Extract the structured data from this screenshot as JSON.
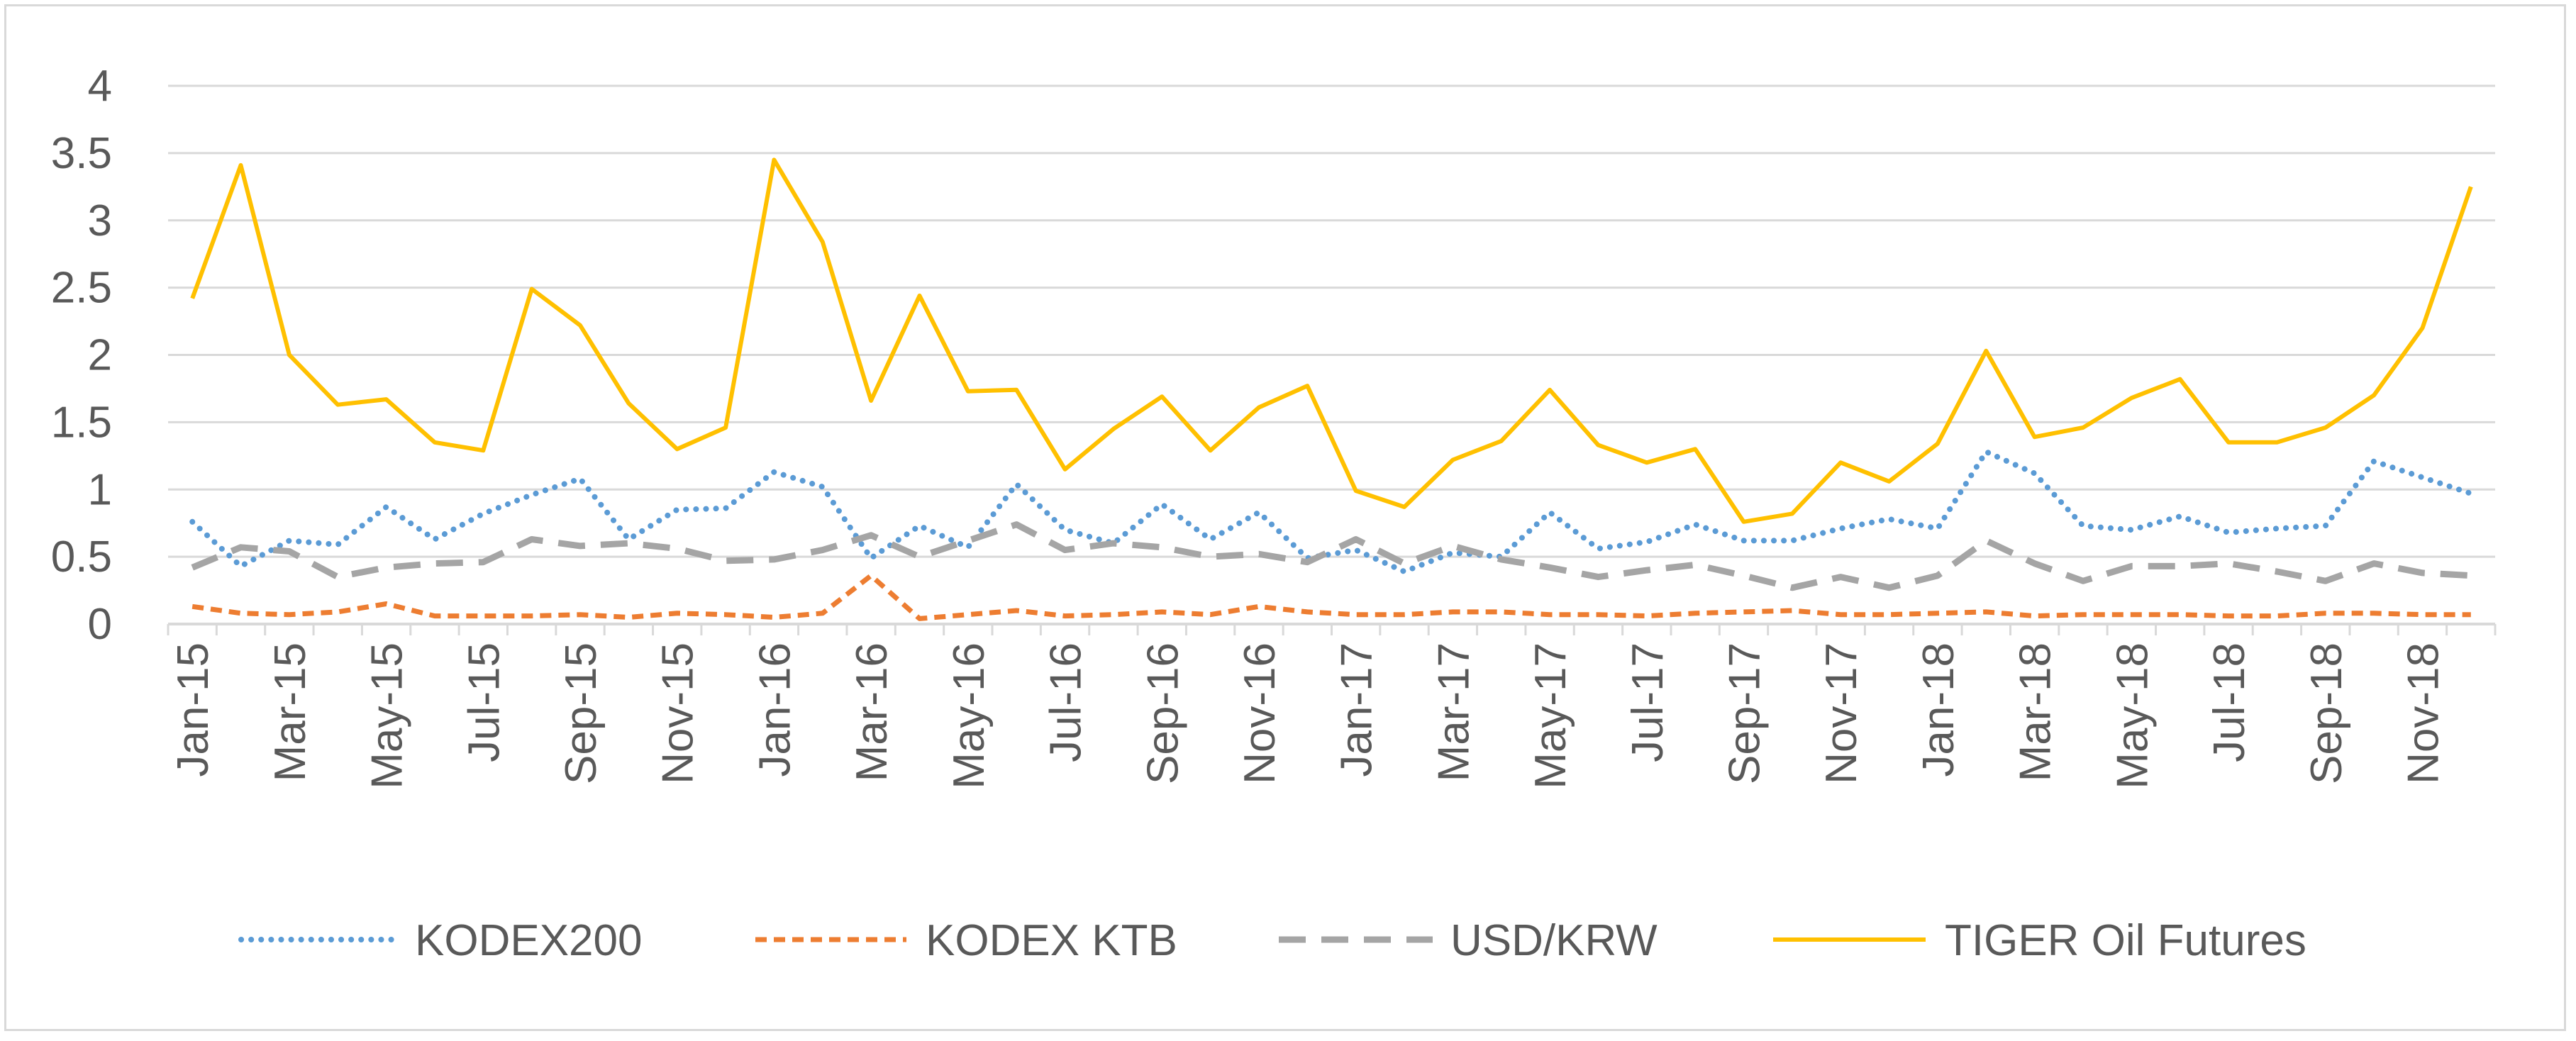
{
  "chart_data": {
    "type": "line",
    "title": "",
    "xlabel": "",
    "ylabel": "",
    "ylim": [
      0,
      4
    ],
    "yticks": [
      "0",
      "0.5",
      "1",
      "1.5",
      "2",
      "2.5",
      "3",
      "3.5",
      "4"
    ],
    "grid": true,
    "legend_position": "bottom",
    "categories": [
      "Jan-15",
      "Feb-15",
      "Mar-15",
      "Apr-15",
      "May-15",
      "Jun-15",
      "Jul-15",
      "Aug-15",
      "Sep-15",
      "Oct-15",
      "Nov-15",
      "Dec-15",
      "Jan-16",
      "Feb-16",
      "Mar-16",
      "Apr-16",
      "May-16",
      "Jun-16",
      "Jul-16",
      "Aug-16",
      "Sep-16",
      "Oct-16",
      "Nov-16",
      "Dec-16",
      "Jan-17",
      "Feb-17",
      "Mar-17",
      "Apr-17",
      "May-17",
      "Jun-17",
      "Jul-17",
      "Aug-17",
      "Sep-17",
      "Oct-17",
      "Nov-17",
      "Dec-17",
      "Jan-18",
      "Feb-18",
      "Mar-18",
      "Apr-18",
      "May-18",
      "Jun-18",
      "Jul-18",
      "Aug-18",
      "Sep-18",
      "Oct-18",
      "Nov-18",
      "Dec-18"
    ],
    "x_tick_labels": [
      "Jan-15",
      "Mar-15",
      "May-15",
      "Jul-15",
      "Sep-15",
      "Nov-15",
      "Jan-16",
      "Mar-16",
      "May-16",
      "Jul-16",
      "Sep-16",
      "Nov-16",
      "Jan-17",
      "Mar-17",
      "May-17",
      "Jul-17",
      "Sep-17",
      "Nov-17",
      "Jan-18",
      "Mar-18",
      "May-18",
      "Jul-18",
      "Sep-18",
      "Nov-18"
    ],
    "series": [
      {
        "name": "KODEX200",
        "color": "#5b9bd5",
        "style": "dotted",
        "values": [
          0.76,
          0.43,
          0.62,
          0.59,
          0.87,
          0.63,
          0.82,
          0.96,
          1.08,
          0.63,
          0.85,
          0.86,
          1.13,
          1.02,
          0.49,
          0.73,
          0.57,
          1.04,
          0.7,
          0.6,
          0.89,
          0.63,
          0.83,
          0.49,
          0.55,
          0.39,
          0.53,
          0.5,
          0.83,
          0.56,
          0.61,
          0.74,
          0.62,
          0.62,
          0.71,
          0.78,
          0.71,
          1.28,
          1.12,
          0.73,
          0.7,
          0.8,
          0.68,
          0.71,
          0.73,
          1.21,
          1.09,
          0.97
        ]
      },
      {
        "name": "KODEX KTB",
        "color": "#ed7d31",
        "style": "short-dash",
        "values": [
          0.13,
          0.08,
          0.07,
          0.09,
          0.15,
          0.06,
          0.06,
          0.06,
          0.07,
          0.05,
          0.08,
          0.07,
          0.05,
          0.08,
          0.36,
          0.04,
          0.07,
          0.1,
          0.06,
          0.07,
          0.09,
          0.07,
          0.13,
          0.09,
          0.07,
          0.07,
          0.09,
          0.09,
          0.07,
          0.07,
          0.06,
          0.08,
          0.09,
          0.1,
          0.07,
          0.07,
          0.08,
          0.09,
          0.06,
          0.07,
          0.07,
          0.07,
          0.06,
          0.06,
          0.08,
          0.08,
          0.07,
          0.07
        ]
      },
      {
        "name": "USD/KRW",
        "color": "#a5a5a5",
        "style": "long-dash",
        "values": [
          0.42,
          0.57,
          0.54,
          0.35,
          0.42,
          0.45,
          0.46,
          0.63,
          0.58,
          0.6,
          0.56,
          0.47,
          0.48,
          0.55,
          0.66,
          0.5,
          0.62,
          0.74,
          0.55,
          0.6,
          0.57,
          0.5,
          0.52,
          0.46,
          0.63,
          0.45,
          0.58,
          0.48,
          0.42,
          0.35,
          0.4,
          0.44,
          0.36,
          0.27,
          0.35,
          0.27,
          0.36,
          0.62,
          0.45,
          0.32,
          0.43,
          0.43,
          0.45,
          0.39,
          0.32,
          0.45,
          0.38,
          0.36
        ]
      },
      {
        "name": "TIGER Oil Futures",
        "color": "#ffc000",
        "style": "solid",
        "values": [
          2.42,
          3.41,
          2.0,
          1.63,
          1.67,
          1.35,
          1.29,
          2.49,
          2.22,
          1.64,
          1.3,
          1.46,
          3.45,
          2.84,
          1.66,
          2.44,
          1.73,
          1.74,
          1.15,
          1.45,
          1.69,
          1.29,
          1.61,
          1.77,
          0.99,
          0.87,
          1.22,
          1.36,
          1.74,
          1.33,
          1.2,
          1.3,
          0.76,
          0.82,
          1.2,
          1.06,
          1.34,
          2.03,
          1.39,
          1.46,
          1.68,
          1.82,
          1.35,
          1.35,
          1.46,
          1.7,
          2.2,
          3.25
        ]
      }
    ]
  }
}
